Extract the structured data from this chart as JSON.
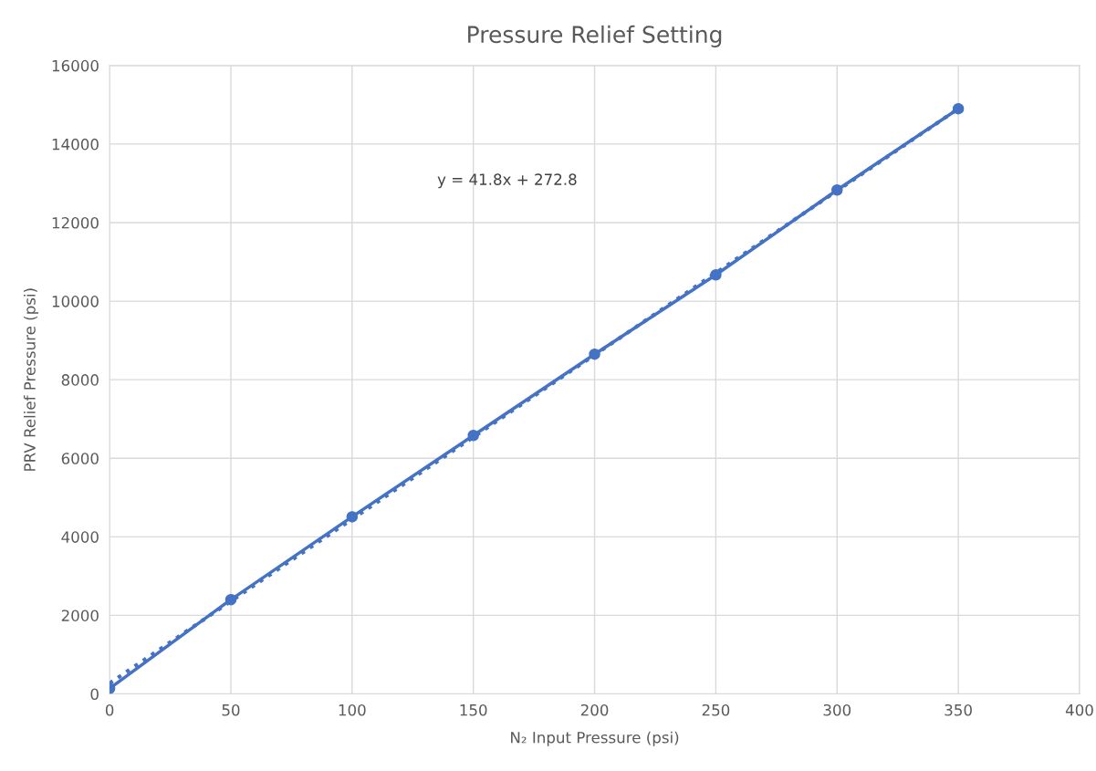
{
  "chart_data": {
    "type": "line",
    "title": "Pressure Relief Setting",
    "xlabel": "N₂ Input Pressure (psi)",
    "ylabel": "PRV Relief Pressure (psi)",
    "x": [
      0,
      50,
      100,
      150,
      200,
      250,
      300,
      350
    ],
    "series": [
      {
        "color": "#4472c4",
        "values": [
          140,
          2400,
          4510,
          6580,
          8650,
          10670,
          12830,
          14900
        ],
        "marker": "circle",
        "line_style": "solid"
      },
      {
        "color": "#4472c4",
        "x": [
          0,
          350
        ],
        "values": [
          270,
          14900
        ],
        "marker": "none",
        "line_style": "dotted"
      }
    ],
    "annotations": [
      "y = 41.8x + 272.8"
    ],
    "xlim": [
      0,
      400
    ],
    "xticks": [
      0,
      50,
      100,
      150,
      200,
      250,
      300,
      350,
      400
    ],
    "ylim": [
      0,
      16000
    ],
    "yticks": [
      0,
      2000,
      4000,
      6000,
      8000,
      10000,
      12000,
      14000,
      16000
    ],
    "grid": true
  }
}
